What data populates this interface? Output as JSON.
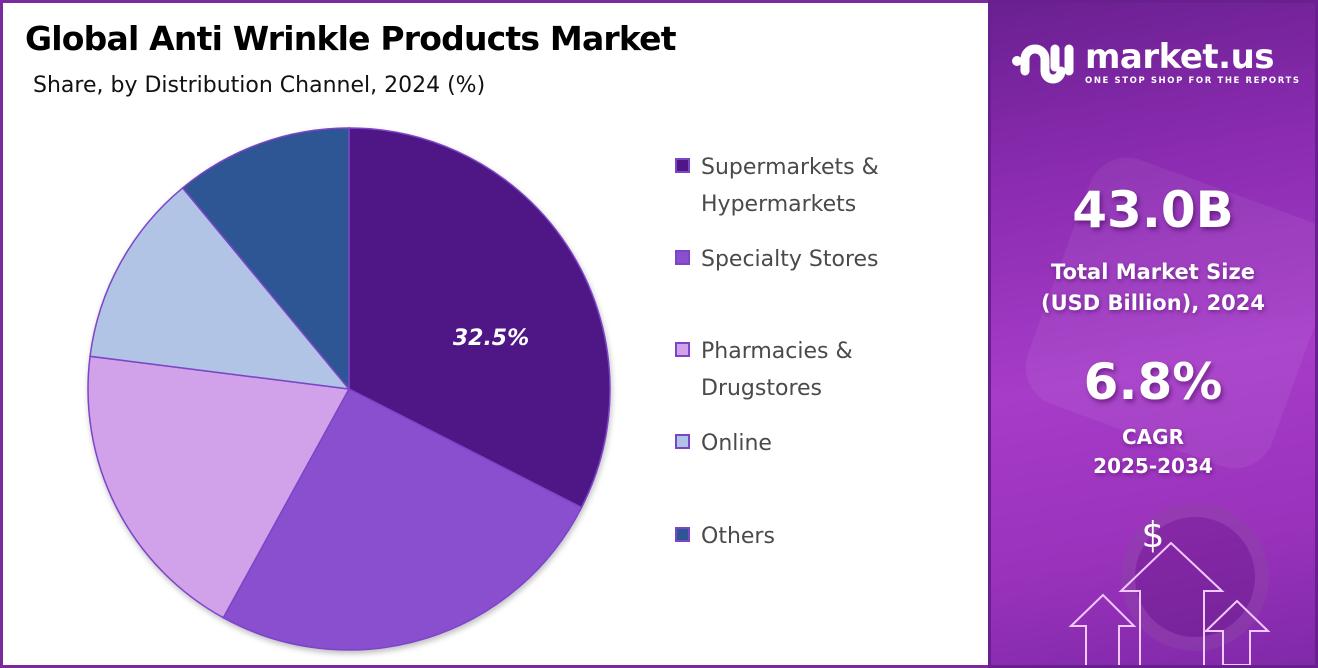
{
  "header": {
    "title": "Global Anti Wrinkle Products Market",
    "subtitle": "Share, by Distribution Channel, 2024 (%)"
  },
  "chart_data": {
    "type": "pie",
    "title": "Global Anti Wrinkle Products Market",
    "subtitle": "Share, by Distribution Channel, 2024 (%)",
    "categories": [
      "Supermarkets & Hypermarkets",
      "Specialty Stores",
      "Pharmacies & Drugstores",
      "Online",
      "Others"
    ],
    "values": [
      32.5,
      25.5,
      19.0,
      12.0,
      11.0
    ],
    "colors": [
      "#4f1786",
      "#8a4fce",
      "#d1a2ea",
      "#b1c4e6",
      "#2e5594"
    ],
    "data_labels": [
      {
        "category": "Supermarkets & Hypermarkets",
        "label": "32.5%"
      }
    ],
    "start_angle_deg": 0,
    "direction": "clockwise",
    "legend_position": "right"
  },
  "legend": {
    "items": [
      {
        "label": "Supermarkets &\nHypermarkets",
        "color": "#4f1786"
      },
      {
        "label": "Specialty Stores",
        "color": "#8a4fce"
      },
      {
        "label": "Pharmacies &\nDrugstores",
        "color": "#d1a2ea"
      },
      {
        "label": "Online",
        "color": "#b1c4e6"
      },
      {
        "label": "Others",
        "color": "#2e5594"
      }
    ]
  },
  "pie_label": "32.5%",
  "sidebar": {
    "brand_name": "market.us",
    "brand_tagline": "ONE STOP SHOP FOR THE REPORTS",
    "market_size_value": "43.0B",
    "market_size_label": "Total Market Size\n(USD Billion), 2024",
    "cagr_value": "6.8%",
    "cagr_label": "CAGR\n2025-2034",
    "dollar_symbol": "$"
  }
}
